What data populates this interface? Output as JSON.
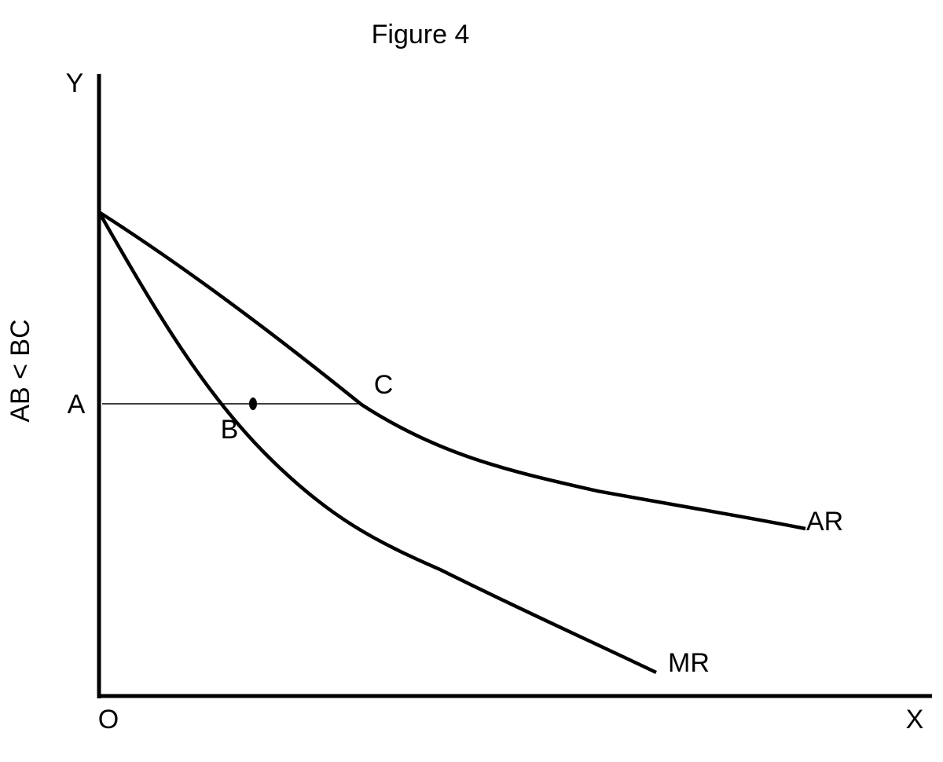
{
  "title": "Figure 4",
  "axes": {
    "y": "Y",
    "x": "X",
    "origin": "O"
  },
  "side_label": "AB < BC",
  "points": [
    "A",
    "B",
    "C"
  ],
  "curves": [
    "AR",
    "MR"
  ]
}
